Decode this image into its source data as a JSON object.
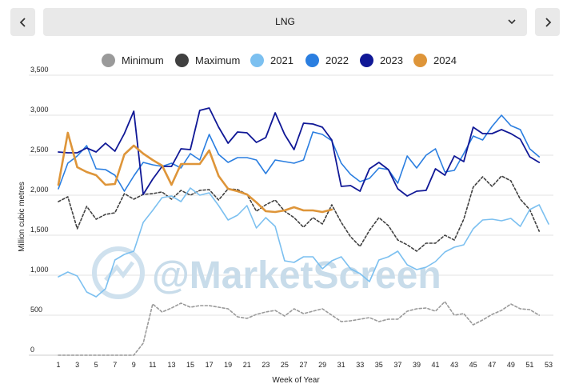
{
  "nav": {
    "prev_icon": "chevron-left-icon",
    "next_icon": "chevron-right-icon",
    "selected": "LNG",
    "dropdown_icon": "chevron-down-icon"
  },
  "legend": [
    {
      "name": "Minimum",
      "color": "#9a9a9a"
    },
    {
      "name": "Maximum",
      "color": "#404040"
    },
    {
      "name": "2021",
      "color": "#7cc0f0"
    },
    {
      "name": "2022",
      "color": "#2a7ee0"
    },
    {
      "name": "2023",
      "color": "#101896"
    },
    {
      "name": "2024",
      "color": "#de9539"
    }
  ],
  "watermark": "@MarketScreen",
  "chart_data": {
    "type": "line",
    "ylabel": "Million cubic metres",
    "xlabel": "Week of Year",
    "ylim": [
      0,
      3500
    ],
    "xlim": [
      1,
      53
    ],
    "yticks": [
      "0",
      "500",
      "1,000",
      "1,500",
      "2,000",
      "2,500",
      "3,000",
      "3,500"
    ],
    "ytick_values": [
      0,
      500,
      1000,
      1500,
      2000,
      2500,
      3000,
      3500
    ],
    "xticks": [
      "1",
      "3",
      "5",
      "7",
      "9",
      "11",
      "13",
      "15",
      "17",
      "19",
      "21",
      "23",
      "25",
      "27",
      "29",
      "31",
      "33",
      "35",
      "37",
      "39",
      "41",
      "43",
      "45",
      "47",
      "49",
      "51",
      "53"
    ],
    "series": [
      {
        "name": "Minimum",
        "color": "#9a9a9a",
        "dashed": true,
        "width": 1.6,
        "values": [
          0,
          0,
          0,
          0,
          0,
          0,
          0,
          0,
          0,
          150,
          640,
          540,
          590,
          650,
          600,
          620,
          620,
          600,
          580,
          480,
          460,
          510,
          540,
          560,
          490,
          580,
          520,
          550,
          580,
          500,
          420,
          430,
          450,
          470,
          420,
          450,
          450,
          550,
          580,
          590,
          550,
          670,
          500,
          520,
          380,
          440,
          510,
          560,
          640,
          580,
          570,
          500
        ]
      },
      {
        "name": "Maximum",
        "color": "#404040",
        "dashed": true,
        "width": 1.6,
        "values": [
          1920,
          1980,
          1580,
          1860,
          1700,
          1760,
          1780,
          2020,
          1950,
          2010,
          2020,
          2040,
          1950,
          2060,
          2000,
          2060,
          2070,
          1940,
          2080,
          2070,
          2010,
          1800,
          1880,
          1940,
          1800,
          1720,
          1600,
          1720,
          1640,
          1880,
          1660,
          1480,
          1360,
          1560,
          1720,
          1620,
          1440,
          1380,
          1300,
          1400,
          1400,
          1500,
          1440,
          1700,
          2100,
          2230,
          2110,
          2240,
          2180,
          1950,
          1820,
          1550
        ]
      },
      {
        "name": "2021",
        "color": "#7cc0f0",
        "dashed": false,
        "width": 1.6,
        "values": [
          980,
          1040,
          990,
          790,
          730,
          830,
          1190,
          1260,
          1300,
          1660,
          1810,
          1970,
          1990,
          1920,
          2090,
          2000,
          2030,
          1870,
          1690,
          1750,
          1870,
          1590,
          1720,
          1610,
          1180,
          1160,
          1230,
          1230,
          1080,
          1180,
          1230,
          1080,
          1020,
          920,
          1190,
          1230,
          1300,
          1130,
          1070,
          1100,
          1170,
          1290,
          1350,
          1380,
          1580,
          1690,
          1700,
          1680,
          1710,
          1610,
          1820,
          1880,
          1640
        ]
      },
      {
        "name": "2022",
        "color": "#2a7ee0",
        "dashed": false,
        "width": 1.6,
        "values": [
          2080,
          2400,
          2490,
          2620,
          2330,
          2320,
          2250,
          2050,
          2240,
          2410,
          2380,
          2360,
          2400,
          2340,
          2520,
          2440,
          2760,
          2510,
          2410,
          2470,
          2470,
          2440,
          2270,
          2440,
          2420,
          2400,
          2440,
          2790,
          2760,
          2680,
          2400,
          2260,
          2170,
          2210,
          2340,
          2320,
          2150,
          2490,
          2340,
          2500,
          2580,
          2290,
          2310,
          2520,
          2740,
          2690,
          2860,
          3000,
          2870,
          2820,
          2580,
          2480
        ]
      },
      {
        "name": "2023",
        "color": "#101896",
        "dashed": false,
        "width": 1.8,
        "values": [
          2540,
          2530,
          2530,
          2590,
          2540,
          2650,
          2550,
          2770,
          3050,
          2010,
          2200,
          2360,
          2360,
          2580,
          2570,
          3060,
          3090,
          2850,
          2650,
          2790,
          2780,
          2660,
          2720,
          3030,
          2760,
          2570,
          2900,
          2890,
          2850,
          2690,
          2110,
          2120,
          2050,
          2330,
          2410,
          2320,
          2080,
          1990,
          2050,
          2060,
          2330,
          2250,
          2490,
          2420,
          2850,
          2770,
          2770,
          2820,
          2770,
          2700,
          2480,
          2410
        ]
      },
      {
        "name": "2024",
        "color": "#de9539",
        "dashed": false,
        "width": 2.6,
        "values": [
          2130,
          2780,
          2350,
          2290,
          2250,
          2130,
          2140,
          2510,
          2620,
          2520,
          2440,
          2370,
          2130,
          2390,
          2390,
          2390,
          2560,
          2240,
          2080,
          2050,
          2010,
          1910,
          1800,
          1790,
          1810,
          1850,
          1810,
          1810,
          1790,
          1820
        ]
      }
    ]
  }
}
